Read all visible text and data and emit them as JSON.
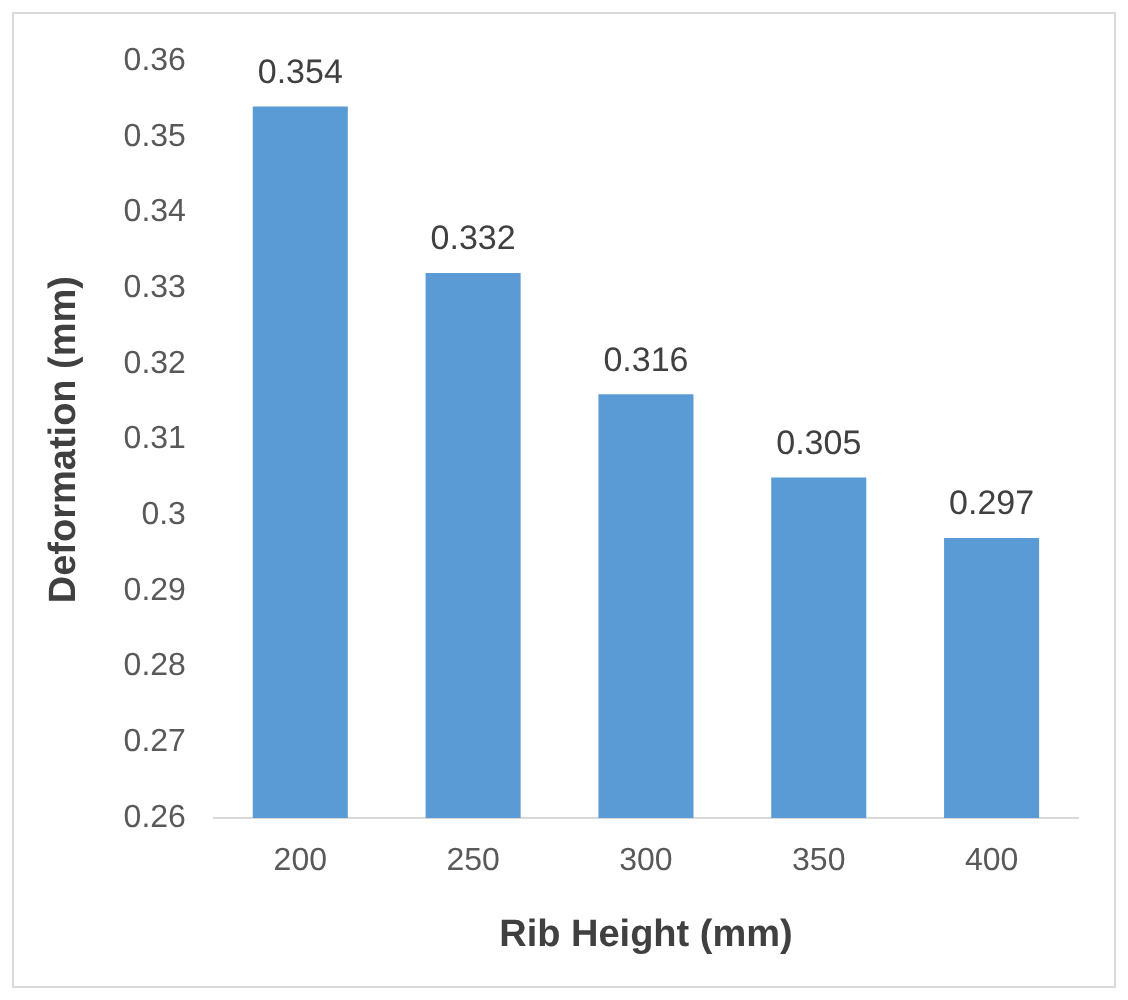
{
  "chart_data": {
    "type": "bar",
    "xlabel": "Rib Height (mm)",
    "ylabel": "Deformation (mm)",
    "categories": [
      "200",
      "250",
      "300",
      "350",
      "400"
    ],
    "values": [
      0.354,
      0.332,
      0.316,
      0.305,
      0.297
    ],
    "color": "#5b9bd5",
    "ylim": [
      0.26,
      0.36
    ],
    "yticks": [
      0.26,
      0.27,
      0.28,
      0.29,
      0.3,
      0.31,
      0.32,
      0.33,
      0.34,
      0.35,
      0.36
    ],
    "grid": false,
    "legend": false,
    "data_labels": true
  }
}
